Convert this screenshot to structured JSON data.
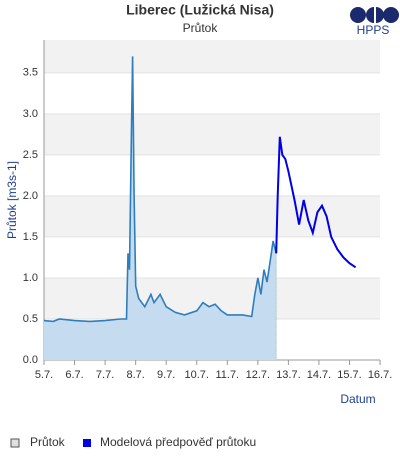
{
  "chart_data": {
    "type": "line",
    "title": "Liberec (Lužická Nisa)",
    "subtitle": "Průtok",
    "logo": "HPPS",
    "y_label": "Průtok [m3s-1]",
    "x_label": "Datum",
    "xlim": [
      5,
      16
    ],
    "ylim": [
      0,
      3.9
    ],
    "xticks": [
      {
        "value": 5,
        "label": "5.7."
      },
      {
        "value": 6,
        "label": "6.7."
      },
      {
        "value": 7,
        "label": "7.7."
      },
      {
        "value": 8,
        "label": "8.7."
      },
      {
        "value": 9,
        "label": "9.7."
      },
      {
        "value": 10,
        "label": "10.7."
      },
      {
        "value": 11,
        "label": "11.7."
      },
      {
        "value": 12,
        "label": "12.7."
      },
      {
        "value": 13,
        "label": "13.7."
      },
      {
        "value": 14,
        "label": "14.7."
      },
      {
        "value": 15,
        "label": "15.7."
      },
      {
        "value": 16,
        "label": "16.7."
      }
    ],
    "yticks": [
      {
        "value": 0,
        "label": "0.0"
      },
      {
        "value": 0.5,
        "label": "0.5"
      },
      {
        "value": 1,
        "label": "1.0"
      },
      {
        "value": 1.5,
        "label": "1.5"
      },
      {
        "value": 2,
        "label": "2.0"
      },
      {
        "value": 2.5,
        "label": "2.5"
      },
      {
        "value": 3,
        "label": "3.0"
      },
      {
        "value": 3.5,
        "label": "3.5"
      }
    ],
    "grid": true,
    "series": [
      {
        "name": "Průtok",
        "color": "#2f7dbb",
        "fill": "#c5dcf0",
        "x": [
          5.0,
          5.3,
          5.5,
          6.0,
          6.5,
          7.0,
          7.5,
          7.7,
          7.75,
          7.8,
          7.85,
          7.9,
          7.95,
          8.0,
          8.1,
          8.3,
          8.5,
          8.6,
          8.8,
          9.0,
          9.3,
          9.6,
          10.0,
          10.2,
          10.4,
          10.6,
          10.8,
          11.0,
          11.5,
          11.8,
          11.9,
          12.0,
          12.1,
          12.2,
          12.3,
          12.4,
          12.5,
          12.6
        ],
        "values": [
          0.48,
          0.47,
          0.5,
          0.48,
          0.47,
          0.48,
          0.5,
          0.5,
          1.3,
          1.1,
          2.5,
          3.7,
          2.0,
          0.9,
          0.75,
          0.65,
          0.8,
          0.7,
          0.8,
          0.65,
          0.58,
          0.55,
          0.6,
          0.7,
          0.65,
          0.68,
          0.6,
          0.55,
          0.55,
          0.53,
          0.8,
          1.0,
          0.8,
          1.1,
          0.95,
          1.2,
          1.45,
          1.3
        ]
      },
      {
        "name": "Modelová předpověď průtoku",
        "color": "#0000e6",
        "x": [
          12.6,
          12.65,
          12.72,
          12.8,
          12.9,
          13.0,
          13.2,
          13.35,
          13.5,
          13.65,
          13.8,
          13.95,
          14.1,
          14.25,
          14.4,
          14.6,
          14.8,
          15.0,
          15.2
        ],
        "values": [
          1.3,
          2.0,
          2.72,
          2.5,
          2.45,
          2.3,
          1.95,
          1.65,
          1.95,
          1.7,
          1.55,
          1.8,
          1.88,
          1.75,
          1.5,
          1.35,
          1.25,
          1.18,
          1.13
        ]
      }
    ]
  }
}
